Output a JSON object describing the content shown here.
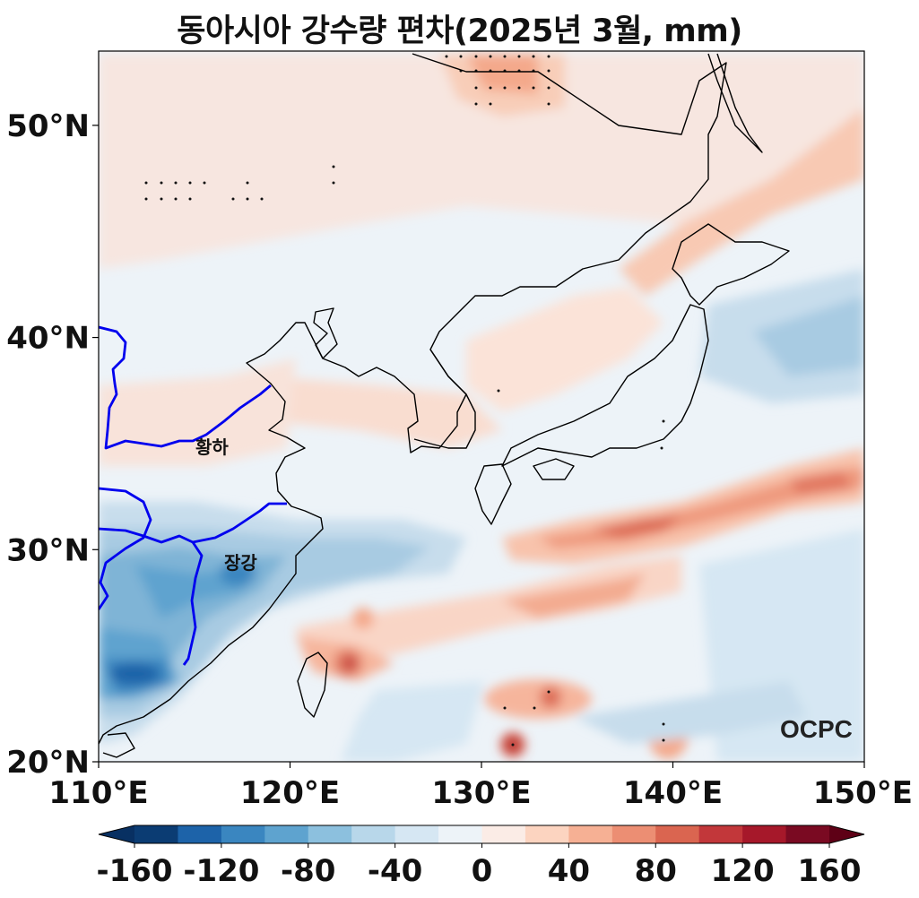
{
  "title": "동아시아 강수량 편차(2025년 3월, mm)",
  "map": {
    "lon_range": [
      110,
      150
    ],
    "lat_range": [
      20,
      53.5
    ],
    "x_ticks": [
      {
        "value": 110,
        "label": "110°E"
      },
      {
        "value": 120,
        "label": "120°E"
      },
      {
        "value": 130,
        "label": "130°E"
      },
      {
        "value": 140,
        "label": "140°E"
      },
      {
        "value": 150,
        "label": "150°E"
      }
    ],
    "y_ticks": [
      {
        "value": 50,
        "label": "50°N"
      },
      {
        "value": 40,
        "label": "40°N"
      },
      {
        "value": 30,
        "label": "30°N"
      },
      {
        "value": 20,
        "label": "20°N"
      }
    ],
    "rivers": [
      {
        "label": "황하",
        "color": "#0000ee"
      },
      {
        "label": "장강",
        "color": "#0000ee"
      }
    ],
    "logo": "OCPC"
  },
  "colorbar": {
    "levels": [
      -160,
      -140,
      -120,
      -100,
      -80,
      -60,
      -40,
      -20,
      0,
      20,
      40,
      60,
      80,
      100,
      120,
      140,
      160
    ],
    "tick_labels": [
      "-160",
      "-120",
      "-80",
      "-40",
      "0",
      "40",
      "80",
      "120",
      "160"
    ],
    "colors": [
      "#0b3c73",
      "#1d63a9",
      "#3a86c0",
      "#5ea3cf",
      "#8cc0de",
      "#b8d7ea",
      "#d6e7f3",
      "#edf3f8",
      "#fbece6",
      "#fcd4c0",
      "#f6b094",
      "#ec8e73",
      "#da6550",
      "#c2373a",
      "#a6182a",
      "#7a0a22"
    ],
    "under_color": "#083062",
    "over_color": "#5e0016"
  }
}
